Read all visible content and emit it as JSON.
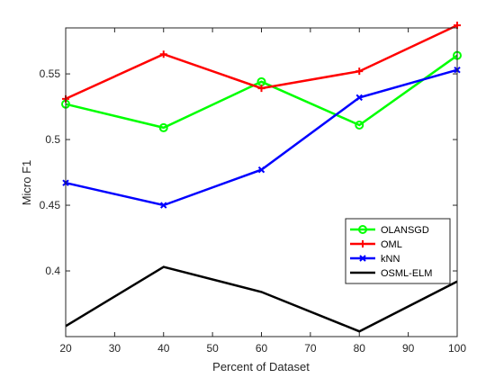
{
  "chart_data": {
    "type": "line",
    "xlabel": "Percent of Dataset",
    "ylabel": "Micro F1",
    "xlim": [
      20,
      100
    ],
    "ylim": [
      0.35,
      0.585
    ],
    "xticks": [
      20,
      30,
      40,
      50,
      60,
      70,
      80,
      90,
      100
    ],
    "xtick_labels": [
      "20",
      "30",
      "40",
      "50",
      "60",
      "70",
      "80",
      "90",
      "100"
    ],
    "yticks": [
      0.4,
      0.45,
      0.5,
      0.55
    ],
    "ytick_labels": [
      "0.4",
      "0.45",
      "0.5",
      "0.55"
    ],
    "grid": false,
    "legend_position": "lower-right",
    "x": [
      20,
      40,
      60,
      80,
      100
    ],
    "series": [
      {
        "name": "OLANSGD",
        "color": "#00ff00",
        "marker": "circle",
        "values": [
          0.527,
          0.509,
          0.544,
          0.511,
          0.564
        ]
      },
      {
        "name": "OML",
        "color": "#ff0000",
        "marker": "plus",
        "values": [
          0.531,
          0.565,
          0.539,
          0.552,
          0.587
        ]
      },
      {
        "name": "kNN",
        "color": "#0000ff",
        "marker": "x",
        "values": [
          0.467,
          0.45,
          0.477,
          0.532,
          0.553
        ]
      },
      {
        "name": "OSML-ELM",
        "color": "#000000",
        "marker": "none",
        "values": [
          0.358,
          0.403,
          0.384,
          0.354,
          0.392
        ]
      }
    ]
  }
}
